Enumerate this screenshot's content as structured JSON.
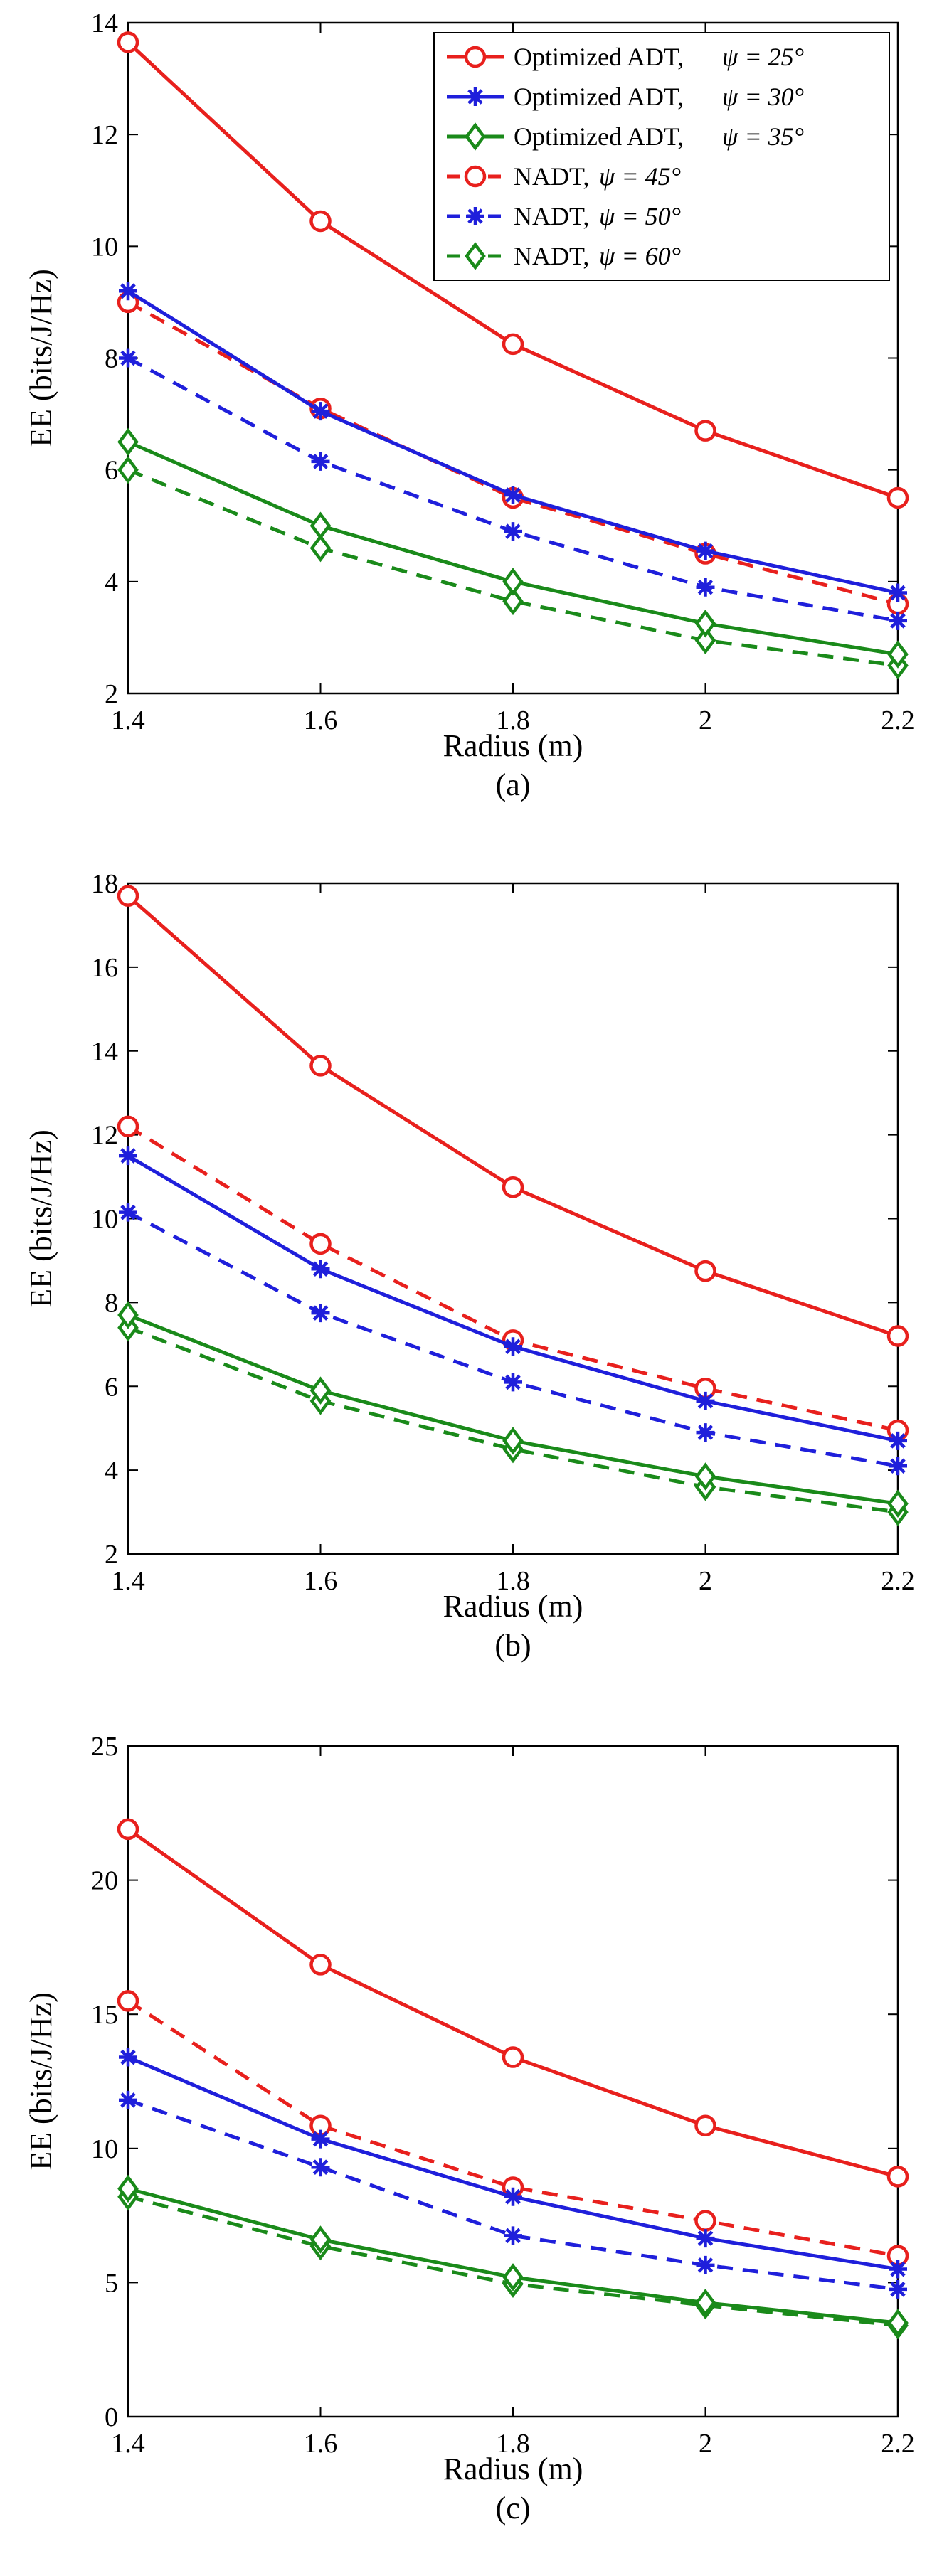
{
  "chart_data": [
    {
      "type": "line",
      "caption": "(a)",
      "xlabel": "Radius (m)",
      "ylabel": "EE (bits/J/Hz)",
      "x": [
        1.4,
        1.6,
        1.8,
        2.0,
        2.2
      ],
      "xticks": [
        "1.4",
        "1.6",
        "1.8",
        "2",
        "2.2"
      ],
      "xlim": [
        1.4,
        2.2
      ],
      "ylim": [
        2,
        14
      ],
      "yticks": [
        "2",
        "4",
        "6",
        "8",
        "10",
        "12",
        "14"
      ],
      "legend_position": "top-right",
      "series": [
        {
          "name": "Optimized ADT,",
          "psi": "ψ = 25°",
          "color": "#e8201d",
          "marker": "circle",
          "dash": "solid",
          "values": [
            13.65,
            10.45,
            8.25,
            6.7,
            5.5
          ]
        },
        {
          "name": "Optimized ADT,",
          "psi": "ψ = 30°",
          "color": "#1f1fdb",
          "marker": "asterisk",
          "dash": "solid",
          "values": [
            9.2,
            7.05,
            5.55,
            4.55,
            3.8
          ]
        },
        {
          "name": "Optimized ADT,",
          "psi": "ψ = 35°",
          "color": "#1a8a1a",
          "marker": "diamond",
          "dash": "solid",
          "values": [
            6.5,
            5.0,
            4.0,
            3.25,
            2.7
          ]
        },
        {
          "name": "NADT,",
          "psi": "ψ = 45°",
          "color": "#e8201d",
          "marker": "circle",
          "dash": "dashed",
          "values": [
            9.0,
            7.1,
            5.5,
            4.5,
            3.6
          ]
        },
        {
          "name": "NADT,",
          "psi": "ψ = 50°",
          "color": "#1f1fdb",
          "marker": "asterisk",
          "dash": "dashed",
          "values": [
            8.0,
            6.15,
            4.9,
            3.9,
            3.3
          ]
        },
        {
          "name": "NADT,",
          "psi": "ψ = 60°",
          "color": "#1a8a1a",
          "marker": "diamond",
          "dash": "dashed",
          "values": [
            6.0,
            4.6,
            3.65,
            2.95,
            2.5
          ]
        }
      ]
    },
    {
      "type": "line",
      "caption": "(b)",
      "xlabel": "Radius (m)",
      "ylabel": "EE (bits/J/Hz)",
      "x": [
        1.4,
        1.6,
        1.8,
        2.0,
        2.2
      ],
      "xticks": [
        "1.4",
        "1.6",
        "1.8",
        "2",
        "2.2"
      ],
      "xlim": [
        1.4,
        2.2
      ],
      "ylim": [
        2,
        18
      ],
      "yticks": [
        "2",
        "4",
        "6",
        "8",
        "10",
        "12",
        "14",
        "16",
        "18"
      ],
      "series": [
        {
          "name": "Optimized ADT, ψ = 25°",
          "color": "#e8201d",
          "marker": "circle",
          "dash": "solid",
          "values": [
            17.7,
            13.65,
            10.75,
            8.75,
            7.2
          ]
        },
        {
          "name": "Optimized ADT, ψ = 30°",
          "color": "#1f1fdb",
          "marker": "asterisk",
          "dash": "solid",
          "values": [
            11.5,
            8.8,
            6.95,
            5.65,
            4.7
          ]
        },
        {
          "name": "Optimized ADT, ψ = 35°",
          "color": "#1a8a1a",
          "marker": "diamond",
          "dash": "solid",
          "values": [
            7.7,
            5.9,
            4.7,
            3.85,
            3.2
          ]
        },
        {
          "name": "NADT, ψ = 45°",
          "color": "#e8201d",
          "marker": "circle",
          "dash": "dashed",
          "values": [
            12.2,
            9.4,
            7.1,
            5.95,
            4.95
          ]
        },
        {
          "name": "NADT, ψ = 50°",
          "color": "#1f1fdb",
          "marker": "asterisk",
          "dash": "dashed",
          "values": [
            10.15,
            7.75,
            6.1,
            4.9,
            4.1
          ]
        },
        {
          "name": "NADT, ψ = 60°",
          "color": "#1a8a1a",
          "marker": "diamond",
          "dash": "dashed",
          "values": [
            7.4,
            5.65,
            4.5,
            3.6,
            3.0
          ]
        }
      ]
    },
    {
      "type": "line",
      "caption": "(c)",
      "xlabel": "Radius (m)",
      "ylabel": "EE (bits/J/Hz)",
      "x": [
        1.4,
        1.6,
        1.8,
        2.0,
        2.2
      ],
      "xticks": [
        "1.4",
        "1.6",
        "1.8",
        "2",
        "2.2"
      ],
      "xlim": [
        1.4,
        2.2
      ],
      "ylim": [
        0,
        25
      ],
      "yticks": [
        "0",
        "5",
        "10",
        "15",
        "20",
        "25"
      ],
      "series": [
        {
          "name": "Optimized ADT, ψ = 25°",
          "color": "#e8201d",
          "marker": "circle",
          "dash": "solid",
          "values": [
            21.9,
            16.85,
            13.4,
            10.85,
            8.95
          ]
        },
        {
          "name": "Optimized ADT, ψ = 30°",
          "color": "#1f1fdb",
          "marker": "asterisk",
          "dash": "solid",
          "values": [
            13.4,
            10.35,
            8.2,
            6.65,
            5.5
          ]
        },
        {
          "name": "Optimized ADT, ψ = 35°",
          "color": "#1a8a1a",
          "marker": "diamond",
          "dash": "solid",
          "values": [
            8.5,
            6.6,
            5.2,
            4.25,
            3.5
          ]
        },
        {
          "name": "NADT, ψ = 45°",
          "color": "#e8201d",
          "marker": "circle",
          "dash": "dashed",
          "values": [
            15.5,
            10.85,
            8.55,
            7.3,
            6.0
          ]
        },
        {
          "name": "NADT, ψ = 50°",
          "color": "#1f1fdb",
          "marker": "asterisk",
          "dash": "dashed",
          "values": [
            11.8,
            9.3,
            6.75,
            5.65,
            4.75
          ]
        },
        {
          "name": "NADT, ψ = 60°",
          "color": "#1a8a1a",
          "marker": "diamond",
          "dash": "dashed",
          "values": [
            8.2,
            6.35,
            4.95,
            4.15,
            3.4
          ]
        }
      ]
    }
  ]
}
